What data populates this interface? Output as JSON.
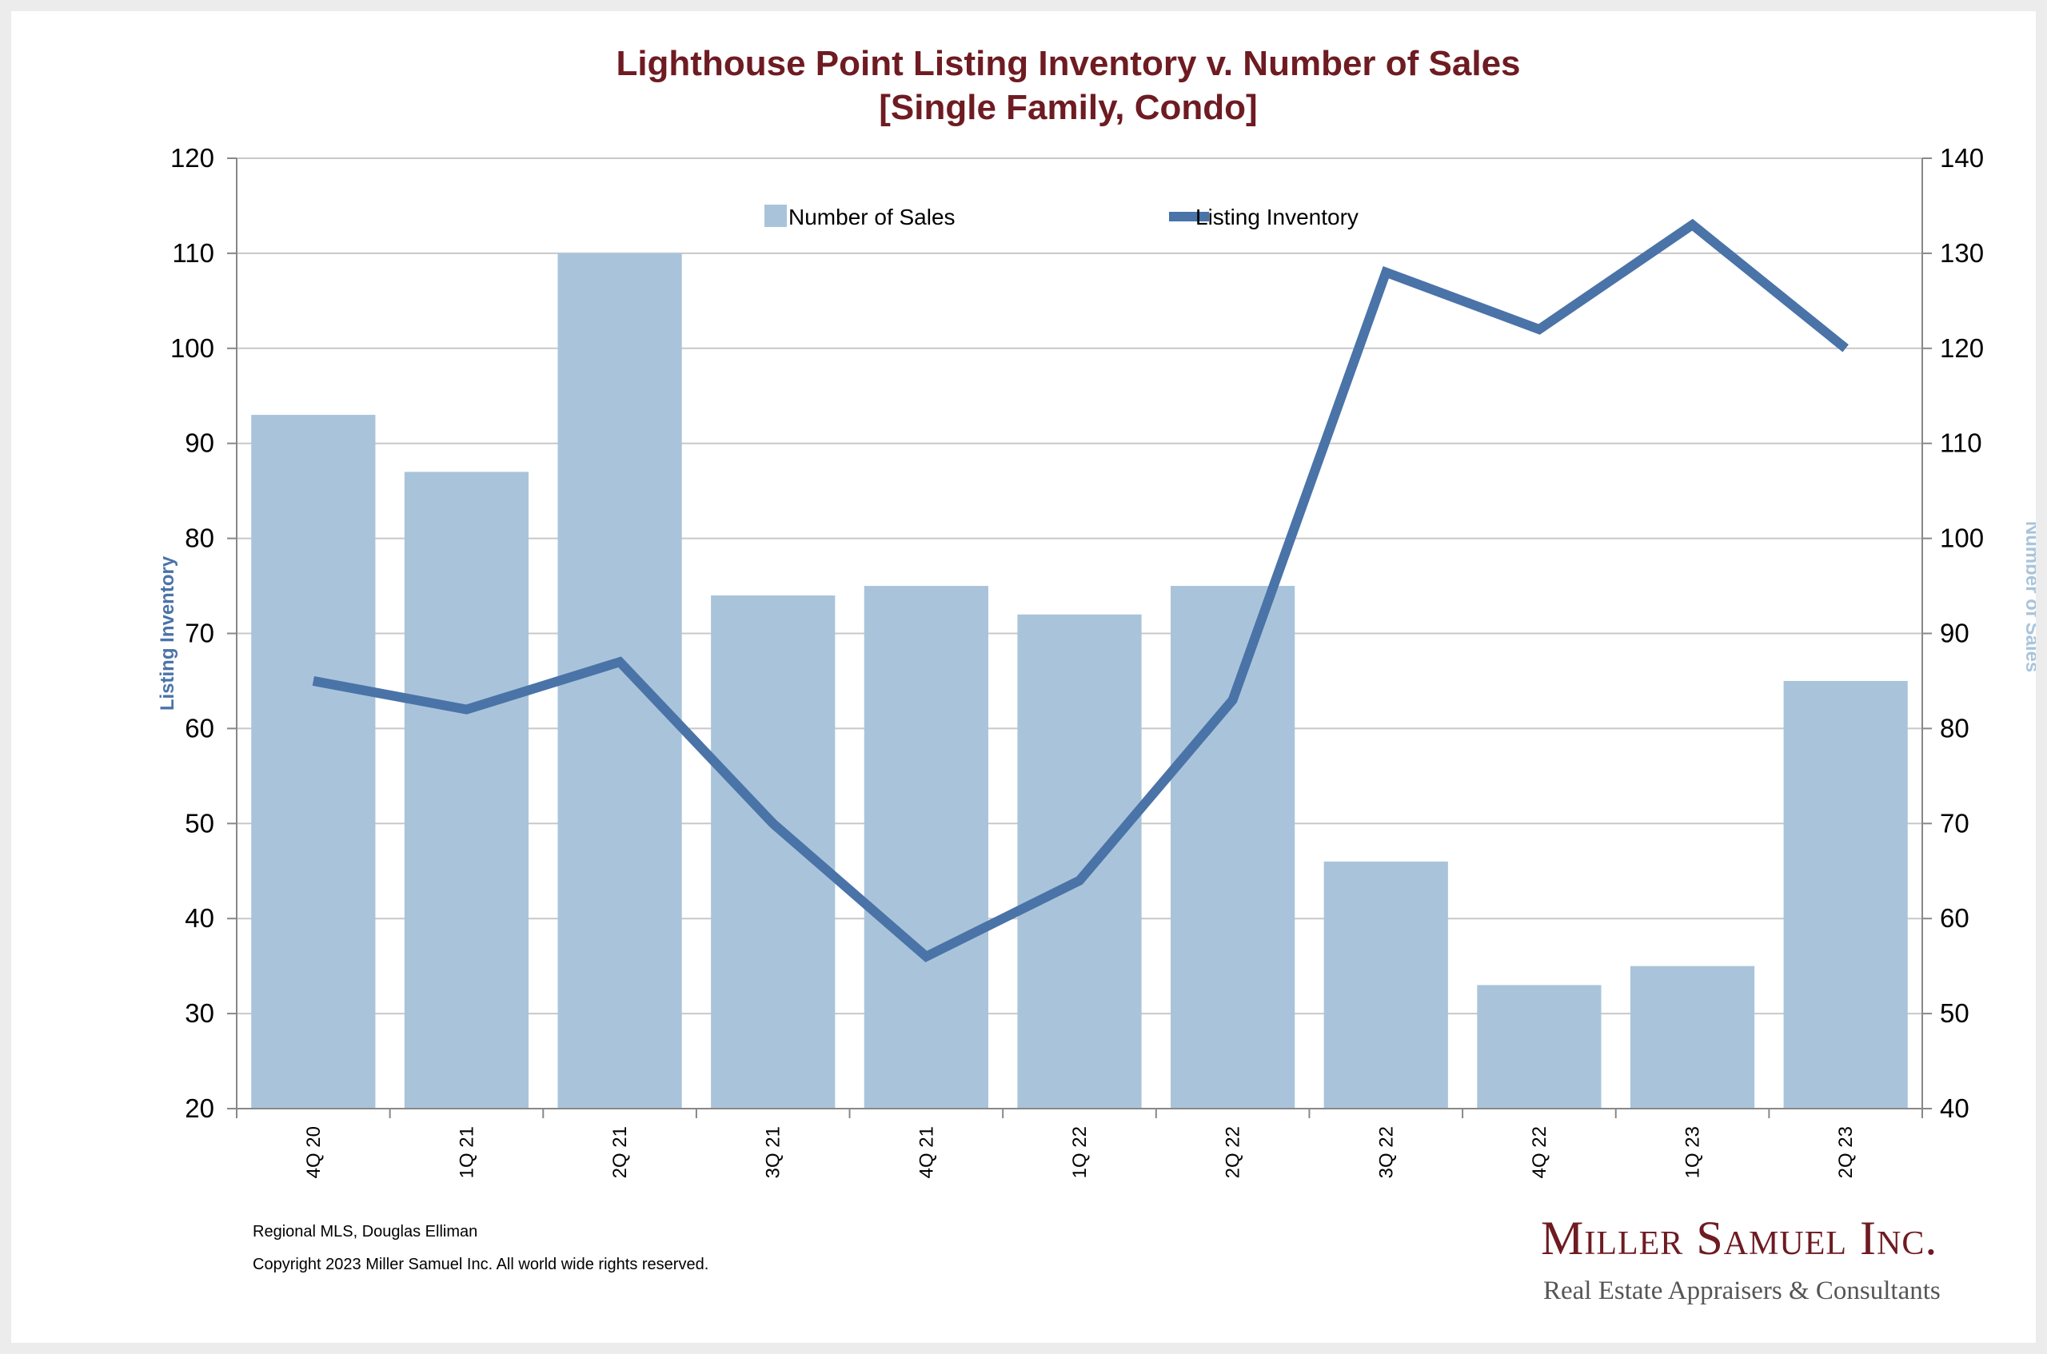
{
  "chart_data": {
    "type": "bar+line",
    "title": "Lighthouse Point Listing Inventory v. Number of Sales",
    "subtitle": "[Single Family, Condo]",
    "categories": [
      "4Q 20",
      "1Q 21",
      "2Q 21",
      "3Q 21",
      "4Q 21",
      "1Q 22",
      "2Q 22",
      "3Q 22",
      "4Q 22",
      "1Q 23",
      "2Q 23"
    ],
    "series": [
      {
        "name": "Number of Sales",
        "type": "bar",
        "axis": "right",
        "color": "#a9c4da",
        "values": [
          113,
          107,
          130,
          94,
          95,
          92,
          95,
          66,
          53,
          55,
          85
        ]
      },
      {
        "name": "Listing Inventory",
        "type": "line",
        "axis": "left",
        "color": "#4a73a8",
        "values": [
          65,
          62,
          67,
          50,
          36,
          44,
          63,
          108,
          102,
          113,
          100
        ]
      }
    ],
    "y_left": {
      "label": "Listing Inventory",
      "min": 20,
      "max": 120,
      "step": 10
    },
    "y_right": {
      "label": "Number of Sales",
      "min": 40,
      "max": 140,
      "step": 10
    },
    "grid": true,
    "legend": "top-center"
  },
  "footer": {
    "source": "Regional MLS, Douglas Elliman",
    "copyright": "Copyright 2023 Miller Samuel Inc.  All world wide rights reserved."
  },
  "logo": {
    "name": "Miller Samuel Inc.",
    "tagline": "Real Estate Appraisers & Consultants"
  },
  "colors": {
    "title": "#6e1b22",
    "bar": "#a9c4da",
    "line": "#4a73a8",
    "grid": "#c8c8c8"
  }
}
